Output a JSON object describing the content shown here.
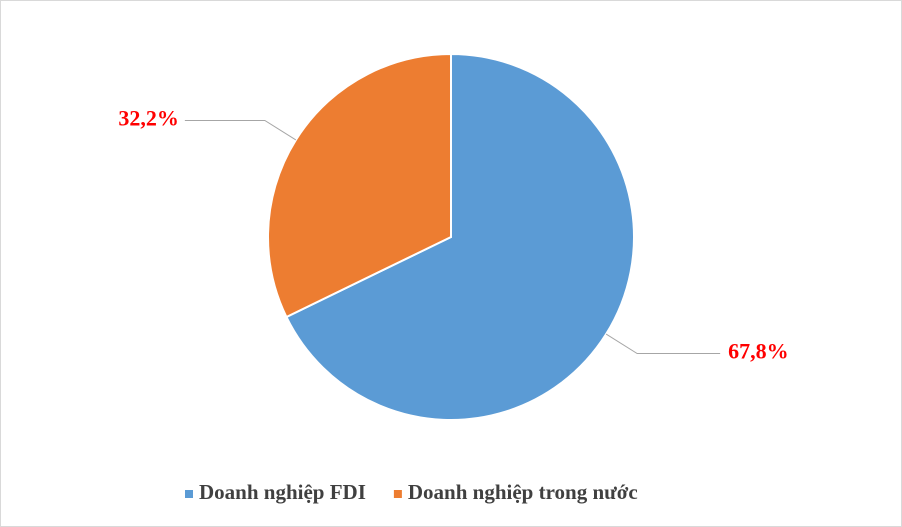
{
  "chart_data": {
    "type": "pie",
    "categories": [
      "Doanh nghiệp FDI",
      "Doanh nghiệp trong nước"
    ],
    "values": [
      67.8,
      32.2
    ],
    "value_labels": [
      "67,8%",
      "32,2%"
    ],
    "colors": [
      "#5b9bd5",
      "#ed7d31"
    ],
    "label_color": "#ff0000",
    "legend": "bottom"
  }
}
